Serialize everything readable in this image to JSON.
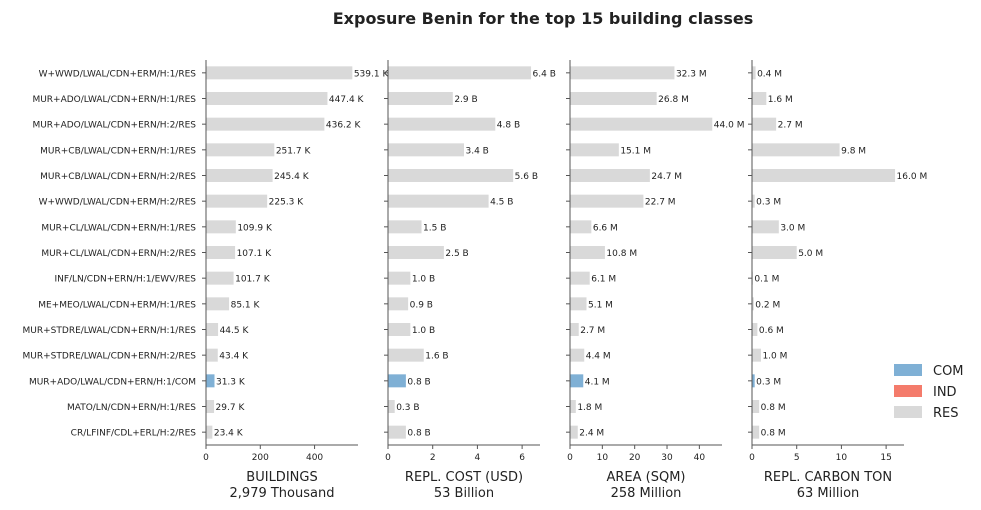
{
  "chart_data": {
    "type": "bar",
    "orientation": "horizontal",
    "title": "Exposure Benin for the top 15 building classes",
    "categories": [
      "W+WWD/LWAL/CDN+ERM/H:1/RES",
      "MUR+ADO/LWAL/CDN+ERN/H:1/RES",
      "MUR+ADO/LWAL/CDN+ERN/H:2/RES",
      "MUR+CB/LWAL/CDN+ERN/H:1/RES",
      "MUR+CB/LWAL/CDN+ERN/H:2/RES",
      "W+WWD/LWAL/CDN+ERM/H:2/RES",
      "MUR+CL/LWAL/CDN+ERN/H:1/RES",
      "MUR+CL/LWAL/CDN+ERN/H:2/RES",
      "INF/LN/CDN+ERN/H:1/EWV/RES",
      "ME+MEO/LWAL/CDN+ERM/H:1/RES",
      "MUR+STDRE/LWAL/CDN+ERN/H:1/RES",
      "MUR+STDRE/LWAL/CDN+ERN/H:2/RES",
      "MUR+ADO/LWAL/CDN+ERN/H:1/COM",
      "MATO/LN/CDN+ERN/H:1/RES",
      "CR/LFINF/CDL+ERL/H:2/RES"
    ],
    "occupancy": [
      "RES",
      "RES",
      "RES",
      "RES",
      "RES",
      "RES",
      "RES",
      "RES",
      "RES",
      "RES",
      "RES",
      "RES",
      "COM",
      "RES",
      "RES"
    ],
    "legend": {
      "placement": "right",
      "entries": [
        {
          "name": "COM",
          "color": "#7fb0d5"
        },
        {
          "name": "IND",
          "color": "#f47b6b"
        },
        {
          "name": "RES",
          "color": "#d9d9d9"
        }
      ]
    },
    "panels": [
      {
        "xlabel": "BUILDINGS",
        "total": "2,979 Thousand",
        "xlim": [
          0,
          560
        ],
        "ticks": [
          0,
          200,
          400
        ],
        "values": [
          539.1,
          447.4,
          436.2,
          251.7,
          245.4,
          225.3,
          109.9,
          107.1,
          101.7,
          85.1,
          44.5,
          43.4,
          31.3,
          29.7,
          23.4
        ],
        "labels": [
          "539.1 K",
          "447.4 K",
          "436.2 K",
          "251.7 K",
          "245.4 K",
          "225.3 K",
          "109.9 K",
          "107.1 K",
          "101.7 K",
          "85.1 K",
          "44.5 K",
          "43.4 K",
          "31.3 K",
          "29.7 K",
          "23.4 K"
        ]
      },
      {
        "xlabel": "REPL. COST (USD)",
        "total": "53 Billion",
        "xlim": [
          0,
          6.8
        ],
        "ticks": [
          0,
          2,
          4,
          6
        ],
        "values": [
          6.4,
          2.9,
          4.8,
          3.4,
          5.6,
          4.5,
          1.5,
          2.5,
          1.0,
          0.9,
          1.0,
          1.6,
          0.8,
          0.3,
          0.8
        ],
        "labels": [
          "6.4 B",
          "2.9 B",
          "4.8 B",
          "3.4 B",
          "5.6 B",
          "4.5 B",
          "1.5 B",
          "2.5 B",
          "1.0 B",
          "0.9 B",
          "1.0 B",
          "1.6 B",
          "0.8 B",
          "0.3 B",
          "0.8 B"
        ]
      },
      {
        "xlabel": "AREA (SQM)",
        "total": "258 Million",
        "xlim": [
          0,
          47
        ],
        "ticks": [
          0,
          10,
          20,
          30,
          40
        ],
        "values": [
          32.3,
          26.8,
          44.0,
          15.1,
          24.7,
          22.7,
          6.6,
          10.8,
          6.1,
          5.1,
          2.7,
          4.4,
          4.1,
          1.8,
          2.4
        ],
        "labels": [
          "32.3 M",
          "26.8 M",
          "44.0 M",
          "15.1 M",
          "24.7 M",
          "22.7 M",
          "6.6 M",
          "10.8 M",
          "6.1 M",
          "5.1 M",
          "2.7 M",
          "4.4 M",
          "4.1 M",
          "1.8 M",
          "2.4 M"
        ]
      },
      {
        "xlabel": "REPL. CARBON TON",
        "total": "63 Million",
        "xlim": [
          0,
          17
        ],
        "ticks": [
          0,
          5,
          10,
          15
        ],
        "values": [
          0.4,
          1.6,
          2.7,
          9.8,
          16.0,
          0.3,
          3.0,
          5.0,
          0.1,
          0.2,
          0.6,
          1.0,
          0.3,
          0.8,
          0.8
        ],
        "labels": [
          "0.4 M",
          "1.6 M",
          "2.7 M",
          "9.8 M",
          "16.0 M",
          "0.3 M",
          "3.0 M",
          "5.0 M",
          "0.1 M",
          "0.2 M",
          "0.6 M",
          "1.0 M",
          "0.3 M",
          "0.8 M",
          "0.8 M"
        ]
      }
    ]
  }
}
